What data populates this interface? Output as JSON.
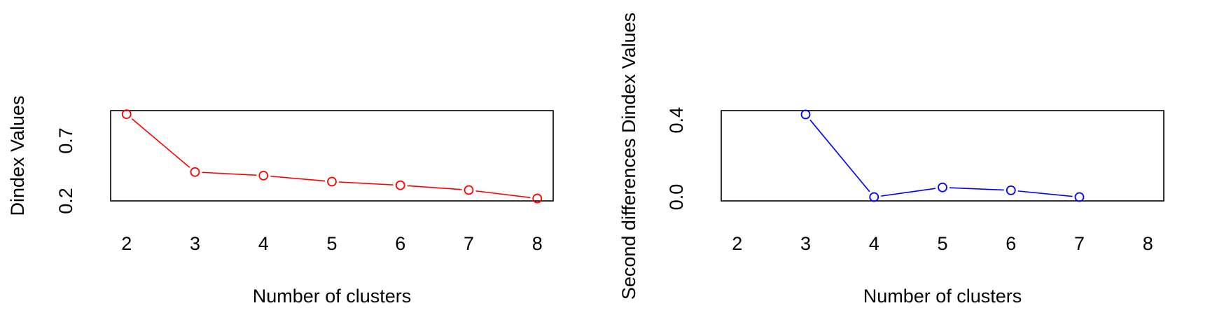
{
  "chart_data": [
    {
      "type": "line",
      "title": "",
      "xlabel": "Number of clusters",
      "ylabel": "Dindex Values",
      "xlim": [
        2,
        8
      ],
      "ylim": [
        0.2,
        0.95
      ],
      "x_ticks": [
        2,
        3,
        4,
        5,
        6,
        7,
        8
      ],
      "y_ticks": [
        0.2,
        0.7
      ],
      "y_tick_labels": [
        "0.2",
        "0.7"
      ],
      "color": "#ff0000",
      "grid": false,
      "x": [
        2,
        3,
        4,
        5,
        6,
        7,
        8
      ],
      "values": [
        0.92,
        0.44,
        0.41,
        0.36,
        0.33,
        0.29,
        0.22
      ]
    },
    {
      "type": "line",
      "title": "",
      "xlabel": "Number of clusters",
      "ylabel": "Second differences Dindex Values",
      "xlim": [
        2,
        8
      ],
      "ylim": [
        -0.02,
        0.45
      ],
      "x_ticks": [
        2,
        3,
        4,
        5,
        6,
        7,
        8
      ],
      "y_ticks": [
        0.0,
        0.4
      ],
      "y_tick_labels": [
        "0.0",
        "0.4"
      ],
      "color": "#0000ff",
      "grid": false,
      "x": [
        3,
        4,
        5,
        6,
        7
      ],
      "values": [
        0.43,
        0.0,
        0.05,
        0.035,
        0.0
      ]
    }
  ]
}
